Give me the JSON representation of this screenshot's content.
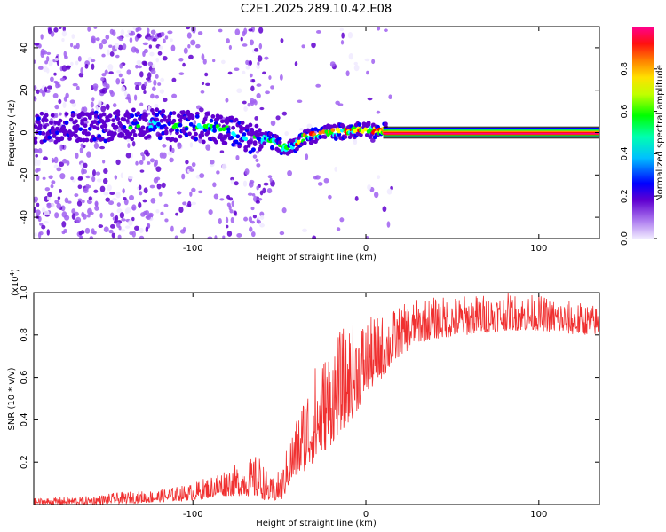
{
  "figure": {
    "title": "C2E1.2025.289.10.42.E08"
  },
  "chart_data": [
    {
      "type": "heatmap",
      "panel": "top",
      "xlabel": "Height of straight line (km)",
      "ylabel": "Frequency (Hz)",
      "xlim": [
        -192,
        135
      ],
      "ylim": [
        -50,
        50
      ],
      "xticks": [
        -100,
        0,
        100
      ],
      "yticks": [
        -40,
        -20,
        0,
        20,
        40
      ],
      "colorbar": {
        "label": "Normalized spectral amplitude",
        "range": [
          0.0,
          1.0
        ],
        "ticks": [
          "0.0",
          "0.2",
          "0.4",
          "0.6",
          "0.8"
        ],
        "colors": [
          "#f0eaff",
          "#a060f0",
          "#6000d0",
          "#0000ff",
          "#00ffff",
          "#00ff00",
          "#ffff00",
          "#ff8000",
          "#ff0000",
          "#ff0090"
        ]
      },
      "ridge": {
        "x": [
          -190,
          -170,
          -150,
          -130,
          -120,
          -110,
          -100,
          -90,
          -80,
          -70,
          -65,
          -60,
          -55,
          -50,
          -45,
          -40,
          -35,
          -30,
          -20,
          -10,
          0,
          10,
          135
        ],
        "y": [
          2,
          3,
          3,
          4,
          4,
          3,
          3,
          2,
          1,
          -2,
          -3,
          -3,
          -4,
          -6,
          -8,
          -5,
          -2,
          -1,
          0,
          1,
          1,
          1,
          0
        ]
      },
      "tone_line": {
        "x_start": 10,
        "x_end": 135,
        "y": 0
      }
    },
    {
      "type": "line",
      "panel": "bottom",
      "xlabel": "Height of straight line (km)",
      "ylabel": "SNR (10 * v/v)",
      "y_multiplier": "(x10",
      "y_multiplier_exp": "4",
      "y_multiplier_close": ")",
      "xlim": [
        -192,
        135
      ],
      "ylim": [
        0,
        1.0
      ],
      "xticks": [
        -100,
        0,
        100
      ],
      "yticks": [
        0.2,
        0.4,
        0.6,
        0.8,
        1.0
      ],
      "color": "#f03030",
      "envelope": {
        "x": [
          -192,
          -160,
          -140,
          -120,
          -100,
          -90,
          -80,
          -70,
          -62,
          -55,
          -48,
          -45,
          -40,
          -35,
          -30,
          -25,
          -20,
          -15,
          -10,
          -5,
          0,
          10,
          20,
          30,
          40,
          60,
          80,
          100,
          120,
          135
        ],
        "lo": [
          0.0,
          0.0,
          0.005,
          0.01,
          0.02,
          0.03,
          0.04,
          0.04,
          0.03,
          0.01,
          0.02,
          0.08,
          0.12,
          0.16,
          0.18,
          0.24,
          0.28,
          0.34,
          0.38,
          0.44,
          0.52,
          0.6,
          0.7,
          0.76,
          0.78,
          0.8,
          0.82,
          0.82,
          0.8,
          0.8
        ],
        "hi": [
          0.03,
          0.04,
          0.06,
          0.07,
          0.1,
          0.14,
          0.18,
          0.2,
          0.24,
          0.12,
          0.18,
          0.3,
          0.42,
          0.56,
          0.66,
          0.7,
          0.78,
          0.82,
          0.86,
          0.88,
          0.88,
          0.9,
          0.94,
          0.97,
          0.98,
          0.99,
          1.0,
          0.99,
          0.96,
          0.94
        ]
      }
    }
  ]
}
